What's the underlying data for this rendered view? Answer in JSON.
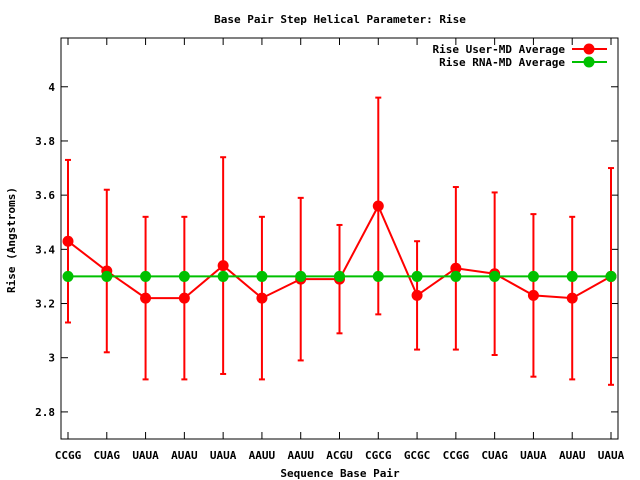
{
  "chart_data": {
    "type": "line",
    "title": "Base Pair Step Helical Parameter: Rise",
    "xlabel": "Sequence Base Pair",
    "ylabel": "Rise (Angstroms)",
    "categories": [
      "CCGG",
      "CUAG",
      "UAUA",
      "AUAU",
      "UAUA",
      "AAUU",
      "AAUU",
      "ACGU",
      "CGCG",
      "GCGC",
      "CCGG",
      "CUAG",
      "UAUA",
      "AUAU",
      "UAUA"
    ],
    "ylim": [
      2.7,
      4.18
    ],
    "yticks": [
      2.8,
      3,
      3.2,
      3.4,
      3.6,
      3.8,
      4
    ],
    "ytick_labels": [
      "2.8",
      "3",
      "3.2",
      "3.4",
      "3.6",
      "3.8",
      "4"
    ],
    "grid": false,
    "legend_position": "top-right",
    "series": [
      {
        "name": "Rise User-MD Average",
        "color": "#ff0000",
        "values": [
          3.43,
          3.32,
          3.22,
          3.22,
          3.34,
          3.22,
          3.29,
          3.29,
          3.56,
          3.23,
          3.33,
          3.31,
          3.23,
          3.22,
          3.3
        ],
        "error_low": [
          3.13,
          3.02,
          2.92,
          2.92,
          2.94,
          2.92,
          2.99,
          3.09,
          3.16,
          3.03,
          3.03,
          3.01,
          2.93,
          2.92,
          2.9
        ],
        "error_high": [
          3.73,
          3.62,
          3.52,
          3.52,
          3.74,
          3.52,
          3.59,
          3.49,
          3.96,
          3.43,
          3.63,
          3.61,
          3.53,
          3.52,
          3.7
        ]
      },
      {
        "name": "Rise RNA-MD Average",
        "color": "#00c000",
        "values": [
          3.3,
          3.3,
          3.3,
          3.3,
          3.3,
          3.3,
          3.3,
          3.3,
          3.3,
          3.3,
          3.3,
          3.3,
          3.3,
          3.3,
          3.3
        ]
      }
    ]
  }
}
